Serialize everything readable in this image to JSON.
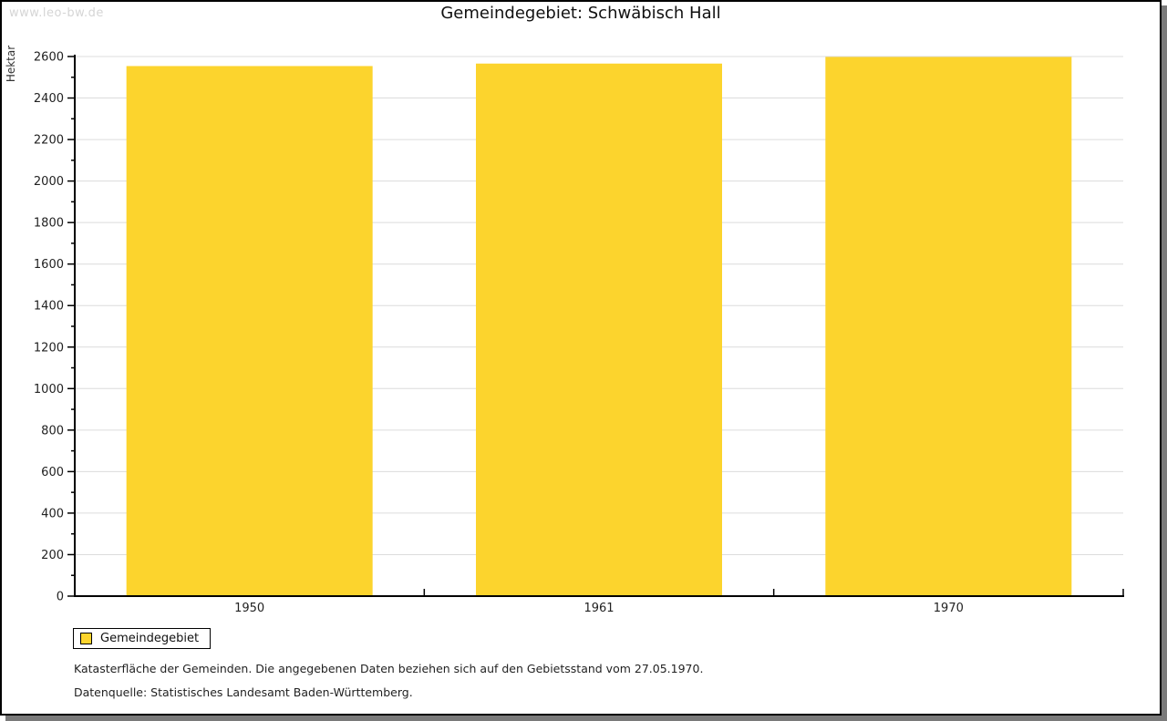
{
  "watermark": "www.leo-bw.de",
  "title": "Gemeindegebiet: Schwäbisch Hall",
  "chart_data": {
    "type": "bar",
    "categories": [
      "1950",
      "1961",
      "1970"
    ],
    "values": [
      2554,
      2566,
      2598
    ],
    "series_name": "Gemeindegebiet",
    "title": "Gemeindegebiet: Schwäbisch Hall",
    "xlabel": "",
    "ylabel": "Hektar",
    "ylim": [
      0,
      2600
    ],
    "ytick_step": 200,
    "yminor_step": 100,
    "grid": "horizontal",
    "legend_position": "bottom-left",
    "bar_color": "#fcd42d",
    "grid_color": "#dcdcdc",
    "axis_color": "#000000",
    "tick_label_color": "#222222"
  },
  "legend": {
    "label": "Gemeindegebiet",
    "swatch_color": "#fcd42d"
  },
  "notes": {
    "line1": "Katasterfläche der Gemeinden. Die angegebenen Daten beziehen sich auf den Gebietsstand vom 27.05.1970.",
    "line2": "Datenquelle: Statistisches Landesamt Baden-Württemberg."
  }
}
